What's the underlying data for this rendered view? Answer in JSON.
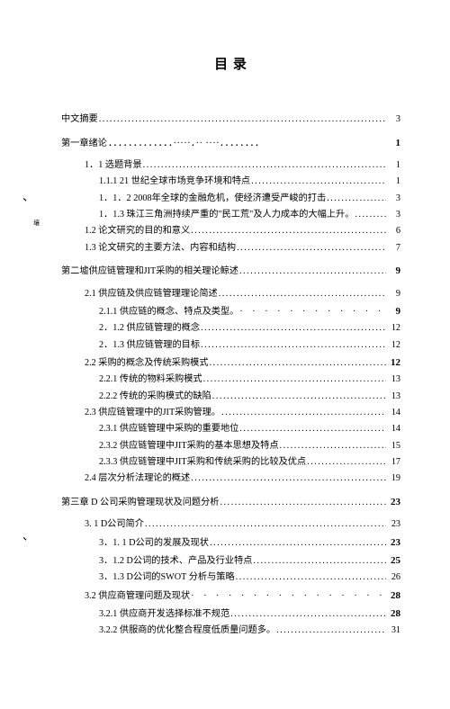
{
  "title": "目 录",
  "entries": [
    {
      "text": "中文摘要",
      "page": "3",
      "indent": 0,
      "leader": "dots",
      "bold_page": false,
      "top_margin": 0
    },
    {
      "text": "第一章绪论",
      "page": "1",
      "indent": 0,
      "leader": "special1",
      "bold_page": true,
      "top_margin": 8
    },
    {
      "text": "",
      "page": "",
      "indent": 0,
      "leader": "blank",
      "top_margin": 3
    },
    {
      "text": "1．1  选题背景",
      "page": "1",
      "indent": 1,
      "leader": "dots"
    },
    {
      "text": "1.1.1 21 世纪全球市场竞争环境和特点",
      "page": "1",
      "indent": 2,
      "leader": "dots"
    },
    {
      "text": "1．1．2 2008年全球的金融危机，使经济遭受严峻的打击",
      "page": "3",
      "indent": 2,
      "leader": "dots"
    },
    {
      "text": "1．1.3 珠江三角洲持续严重的\"民工荒\"及人力成本的大幅上升。",
      "page": "3",
      "indent": 2,
      "leader": "dots"
    },
    {
      "text": "1.2  论文研究的目的和意义",
      "page": "6",
      "indent": 1,
      "leader": "dots"
    },
    {
      "text": "1.3  论文研究的主要方法、内容和结构",
      "page": "7",
      "indent": 1,
      "leader": "dots"
    },
    {
      "text": "第二墟供应链管理和JIT采购的相关理论鲸述",
      "page": "9",
      "indent": 0,
      "leader": "dots",
      "bold_page": true,
      "top_margin": 8
    },
    {
      "text": "",
      "page": "",
      "indent": 0,
      "leader": "blank",
      "top_margin": 3
    },
    {
      "text": "2.1 供应链及供应链管理理论简述",
      "page": "9",
      "indent": 1,
      "leader": "dots"
    },
    {
      "text": "2.1.1 供应链的概念、特点及类型。",
      "page": "9",
      "indent": 2,
      "leader": "sparse",
      "bold_page": true
    },
    {
      "text": "2．1.2 供应链管理的概念",
      "page": "12",
      "indent": 2,
      "leader": "dots"
    },
    {
      "text": "2．1.3 供应链管理的目标",
      "page": "12",
      "indent": 2,
      "leader": "dots"
    },
    {
      "text": "2.2 采购的概念及传统采购模式",
      "page": "12",
      "indent": 1,
      "leader": "dots",
      "bold_page": true
    },
    {
      "text": "2.2.1 传统的物料采购模式",
      "page": "13",
      "indent": 2,
      "leader": "dots"
    },
    {
      "text": "2.2.2  传统的采购模式的缺陷",
      "page": "13",
      "indent": 2,
      "leader": "dots"
    },
    {
      "text": "2.3 供应链管理中的JIT采购管理。",
      "page": "14",
      "indent": 1,
      "leader": "dots"
    },
    {
      "text": "2.3.1 供应链管理中采购的重要地位",
      "page": "14",
      "indent": 2,
      "leader": "dots"
    },
    {
      "text": "2.3.2 供应链管理中JIT采购的基本思想及特点",
      "page": "15",
      "indent": 2,
      "leader": "dots"
    },
    {
      "text": "2.3.3 供应链管理中JIT采购和传统采购的比较及优点",
      "page": "17",
      "indent": 2,
      "leader": "dots"
    },
    {
      "text": "2.4 层次分析法理论的概述",
      "page": "19",
      "indent": 1,
      "leader": "dots"
    },
    {
      "text": "第三章  D 公司采购管理现状及问题分析",
      "page": "23",
      "indent": 0,
      "leader": "dots",
      "bold_page": true,
      "top_margin": 8
    },
    {
      "text": "",
      "page": "",
      "indent": 0,
      "leader": "blank",
      "top_margin": 3
    },
    {
      "text": "3. 1 D公司简介",
      "page": "23",
      "indent": 1,
      "leader": "dots"
    },
    {
      "text": "3．1. 1 D公司的发展及现状",
      "page": "23",
      "indent": 2,
      "leader": "dots",
      "bold_page": true
    },
    {
      "text": "3．1.2  D公词的技术、产品及行业特点",
      "page": "25",
      "indent": 2,
      "leader": "dots",
      "bold_page": true
    },
    {
      "text": "3．1.3   D公词的SWOT  分析与策略",
      "page": "26",
      "indent": 2,
      "leader": "dots"
    },
    {
      "text": "3.2 供应商管理问题及现状",
      "page": "28",
      "indent": 1,
      "leader": "sparse",
      "bold_page": true
    },
    {
      "text": "3.2.1 供应商开发选择标准不规范",
      "page": "28",
      "indent": 2,
      "leader": "dots",
      "bold_page": true
    },
    {
      "text": "3.2.2  供服商的优化整合程度低质量问题多。",
      "page": "31",
      "indent": 2,
      "leader": "dots"
    }
  ],
  "edge_marks": [
    {
      "glyph": "、",
      "class": "mark1"
    },
    {
      "glyph": "、",
      "class": "mark3"
    }
  ],
  "colors": {
    "text": "#000000",
    "background": "#ffffff"
  },
  "fontsize": {
    "body": 10.2,
    "title": 15
  }
}
